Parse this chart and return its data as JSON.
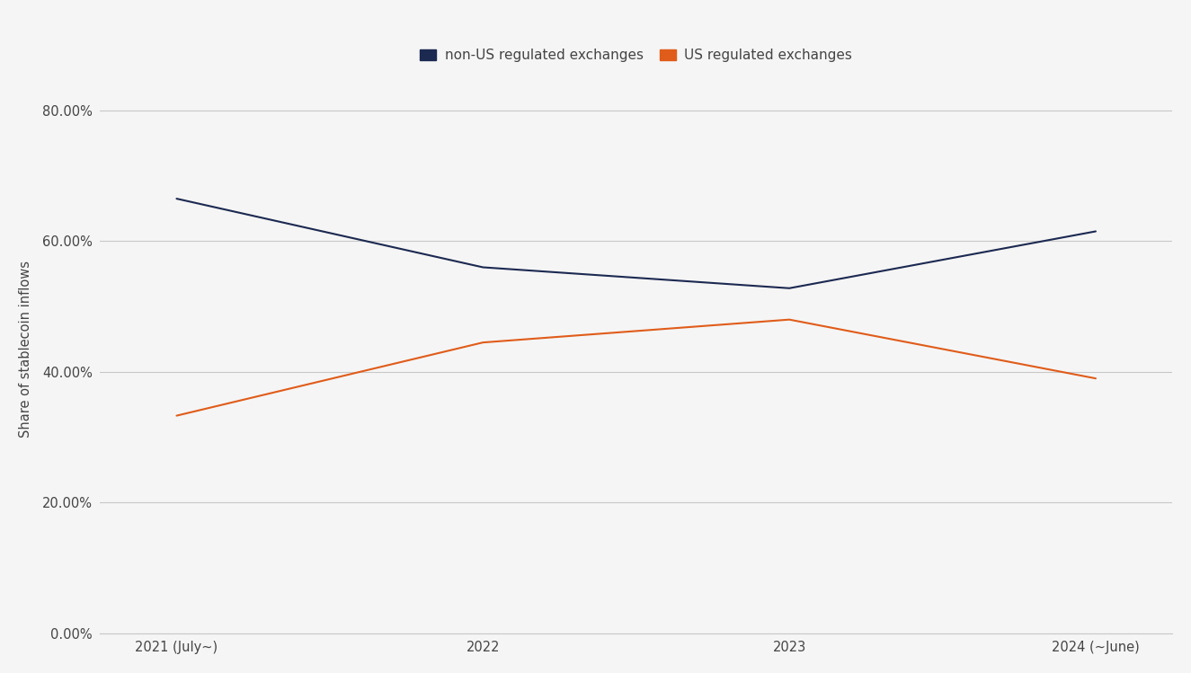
{
  "x_labels": [
    "2021 (July~)",
    "2022",
    "2023",
    "2024 (~June)"
  ],
  "x_positions": [
    0,
    1,
    2,
    3
  ],
  "non_us_values": [
    0.665,
    0.56,
    0.528,
    0.615
  ],
  "us_values": [
    0.333,
    0.445,
    0.48,
    0.39
  ],
  "non_us_color": "#1c2951",
  "us_color": "#e05c1a",
  "non_us_label": "non-US regulated exchanges",
  "us_label": "US regulated exchanges",
  "ylabel": "Share of stablecoin inflows",
  "ylim": [
    0.0,
    0.87
  ],
  "yticks": [
    0.0,
    0.2,
    0.4,
    0.6,
    0.8
  ],
  "ytick_labels": [
    "0.00%",
    "20.00%",
    "40.00%",
    "60.00%",
    "80.00%"
  ],
  "background_color": "#f5f5f5",
  "grid_color": "#c8c8c8",
  "line_width": 1.5,
  "legend_fontsize": 11,
  "tick_fontsize": 10.5,
  "ylabel_fontsize": 10.5,
  "tick_color": "#444444",
  "xlim": [
    -0.25,
    3.25
  ]
}
